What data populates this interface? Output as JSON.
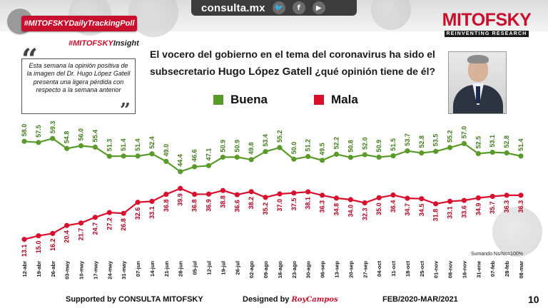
{
  "header": {
    "site": "consulta.mx",
    "social_icons": [
      {
        "name": "twitter-icon",
        "glyph": "🐦"
      },
      {
        "name": "facebook-icon",
        "glyph": "f"
      },
      {
        "name": "youtube-icon",
        "glyph": "▶"
      }
    ],
    "hashtag": "#MITOFSKYDailyTrackingPoll",
    "insight_prefix": "#MITOFSKY",
    "insight_suffix": "Insight",
    "logo_name": "MITOFSKY",
    "logo_tag": "REINVENTING RESEARCH"
  },
  "quote": {
    "open": "“",
    "close": "”",
    "text": "Esta semana la opinión positiva de la imagen del Dr. Hugo López Gatell presenta una ligera pérdida con respecto a la semana anterior"
  },
  "question": {
    "line1": "El vocero del gobierno en el tema del coronavirus ha sido el",
    "line2_start": "subsecretario ",
    "name": "Hugo López Gatell",
    "line2_end": " ¿qué opinión tiene de él?"
  },
  "legend": {
    "buena": "Buena",
    "mala": "Mala"
  },
  "colors": {
    "buena": "#5a9a2a",
    "mala": "#d8102e",
    "brand_red": "#c8102e"
  },
  "chart_data": {
    "type": "line",
    "categories": [
      "12-abr",
      "19-abr",
      "26-abr",
      "03-may",
      "10-may",
      "17-may",
      "24-may",
      "31-may",
      "07-jun",
      "14-jun",
      "21-jun",
      "28-jun",
      "05-jul",
      "12-jul",
      "19-jul",
      "26-jul",
      "02-ago",
      "09-ago",
      "16-ago",
      "23-ago",
      "30-ago",
      "06-sep",
      "13-sep",
      "20-sep",
      "27-sep",
      "04-oct",
      "11-oct",
      "18-oct",
      "25-oct",
      "01-nov",
      "08-nov",
      "16-nov",
      "31-ene",
      "07-feb",
      "28-feb",
      "08-mar"
    ],
    "series": [
      {
        "name": "Buena",
        "values": [
          58.0,
          57.5,
          59.3,
          54.8,
          56.0,
          55.4,
          51.3,
          51.4,
          51.4,
          52.4,
          49.0,
          44.4,
          46.6,
          47.1,
          50.9,
          50.9,
          49.8,
          53.4,
          55.2,
          50.0,
          51.2,
          49.5,
          52.2,
          50.8,
          52.0,
          50.9,
          51.5,
          53.7,
          52.8,
          53.5,
          55.2,
          57.0,
          52.5,
          53.1,
          52.8,
          51.4
        ]
      },
      {
        "name": "Mala",
        "values": [
          13.1,
          15.0,
          16.2,
          20.4,
          21.7,
          24.7,
          27.2,
          26.8,
          32.6,
          33.1,
          36.8,
          39.9,
          36.8,
          36.9,
          38.8,
          36.6,
          38.2,
          35.2,
          37.0,
          37.5,
          38.1,
          36.3,
          34.8,
          34.0,
          32.3,
          35.0,
          36.4,
          34.7,
          34.5,
          31.8,
          33.1,
          33.6,
          34.9,
          35.7,
          36.3,
          36.3
        ]
      }
    ],
    "annotation": "Sumando Ns/Nc=100%"
  },
  "footer": {
    "supported": "Supported by   CONSULTA   MITOFSKY",
    "designed": "Designed by ",
    "designer": "RoyCampos",
    "period": "FEB/2020-MAR/2021",
    "page": "10"
  }
}
